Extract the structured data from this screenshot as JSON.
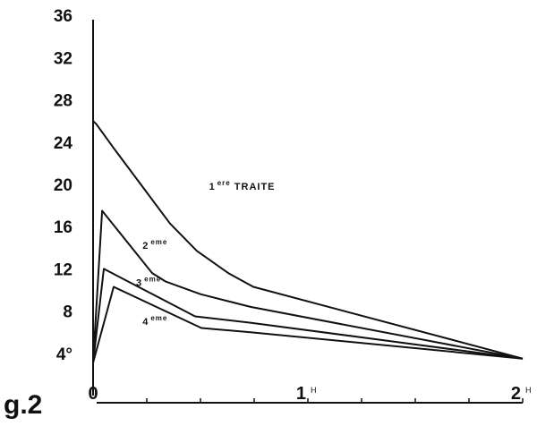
{
  "figure_label": "g.2",
  "chart_data": {
    "type": "line",
    "title": "",
    "xlabel": "",
    "ylabel": "",
    "x_unit": "H",
    "xlim": [
      0,
      2
    ],
    "ylim": [
      0,
      36
    ],
    "x_ticks": [
      {
        "value": 0,
        "label": "0",
        "unit": "H"
      },
      {
        "value": 0.25,
        "label": ""
      },
      {
        "value": 0.5,
        "label": ""
      },
      {
        "value": 0.75,
        "label": ""
      },
      {
        "value": 1,
        "label": "1",
        "unit": "H"
      },
      {
        "value": 1.25,
        "label": ""
      },
      {
        "value": 1.5,
        "label": ""
      },
      {
        "value": 1.75,
        "label": ""
      },
      {
        "value": 2,
        "label": "2",
        "unit": "H"
      }
    ],
    "y_ticks": [
      {
        "value": 4,
        "label": "4°"
      },
      {
        "value": 8,
        "label": "8"
      },
      {
        "value": 12,
        "label": "12"
      },
      {
        "value": 16,
        "label": "16"
      },
      {
        "value": 20,
        "label": "20"
      },
      {
        "value": 24,
        "label": "24"
      },
      {
        "value": 28,
        "label": "28"
      },
      {
        "value": 32,
        "label": "32"
      },
      {
        "value": 36,
        "label": "36"
      }
    ],
    "grid": false,
    "legend": "inline labels",
    "series": [
      {
        "name": "1ere TRAITE",
        "label_main": "1",
        "label_sup": "ere",
        "label_suffix": " TRAITE",
        "label_pos": {
          "x": 0.54,
          "y": 19.5
        },
        "points": [
          [
            0,
            26.0
          ],
          [
            0.015,
            25.7
          ],
          [
            0.108,
            23.1
          ],
          [
            0.233,
            19.7
          ],
          [
            0.358,
            16.3
          ],
          [
            0.483,
            13.7
          ],
          [
            0.629,
            11.6
          ],
          [
            0.746,
            10.3
          ],
          [
            2.0,
            3.5
          ]
        ]
      },
      {
        "name": "2eme",
        "label_main": "2",
        "label_sup": "eme",
        "label_suffix": "",
        "label_pos": {
          "x": 0.23,
          "y": 13.9
        },
        "points": [
          [
            0,
            3.1
          ],
          [
            0.042,
            17.5
          ],
          [
            0.275,
            11.6
          ],
          [
            0.338,
            10.8
          ],
          [
            0.5,
            9.6
          ],
          [
            0.733,
            8.4
          ],
          [
            2.0,
            3.5
          ]
        ]
      },
      {
        "name": "3eme",
        "label_main": "3",
        "label_sup": "eme",
        "label_suffix": "",
        "label_pos": {
          "x": 0.2,
          "y": 10.4
        },
        "points": [
          [
            0,
            3.1
          ],
          [
            0.05,
            12.0
          ],
          [
            0.475,
            7.5
          ],
          [
            0.733,
            6.9
          ],
          [
            2.0,
            3.5
          ]
        ]
      },
      {
        "name": "4eme",
        "label_main": "4",
        "label_sup": "eme",
        "label_suffix": "",
        "label_pos": {
          "x": 0.23,
          "y": 6.7
        },
        "points": [
          [
            0,
            3.1
          ],
          [
            0.096,
            10.3
          ],
          [
            0.504,
            6.4
          ],
          [
            0.733,
            6.0
          ],
          [
            2.0,
            3.5
          ]
        ]
      }
    ]
  },
  "colors": {
    "ink": "#111111",
    "background": "#ffffff"
  }
}
